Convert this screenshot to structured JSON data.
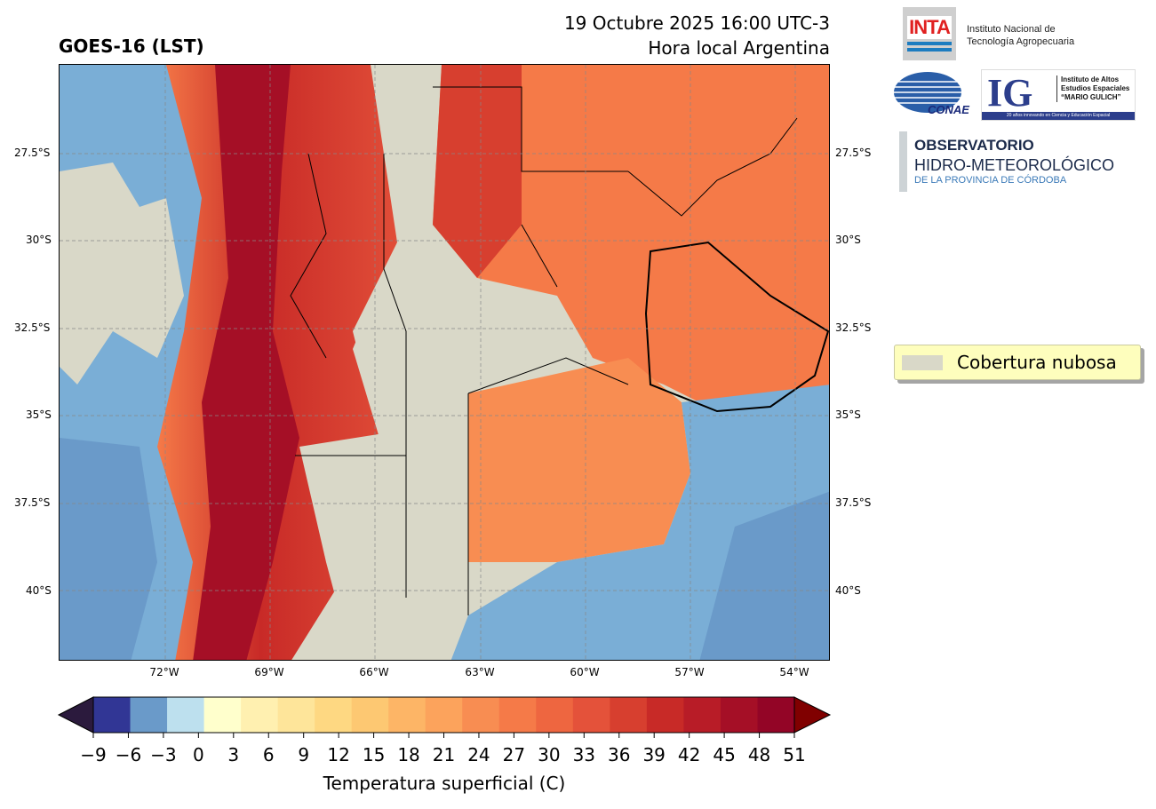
{
  "header": {
    "product_title": "GOES-16 (LST)",
    "datetime": "19 Octubre 2025 16:00 UTC-3",
    "timezone_note": "Hora local Argentina"
  },
  "map": {
    "lat_ticks": [
      "27.5°S",
      "30°S",
      "32.5°S",
      "35°S",
      "37.5°S",
      "40°S"
    ],
    "lon_ticks": [
      "72°W",
      "69°W",
      "66°W",
      "63°W",
      "60°W",
      "57°W",
      "54°W"
    ],
    "cloud_color": "#d9d8c8",
    "ocean_color": "#7aaed6"
  },
  "legend": {
    "cloud_label": "Cobertura nubosa"
  },
  "colorbar": {
    "label": "Temperatura superficial (C)",
    "ticks": [
      "−9",
      "−6",
      "−3",
      "0",
      "3",
      "6",
      "9",
      "12",
      "15",
      "18",
      "21",
      "24",
      "27",
      "30",
      "33",
      "36",
      "39",
      "42",
      "45",
      "48",
      "51"
    ],
    "colors": [
      "#313695",
      "#6a9ac9",
      "#bde0ee",
      "#ffffcc",
      "#fff0b0",
      "#fee59a",
      "#fed882",
      "#fdc872",
      "#fdb566",
      "#fca35c",
      "#f88d52",
      "#f57a48",
      "#ee6640",
      "#e4523a",
      "#d73f2f",
      "#c82a27",
      "#b81c27",
      "#a50f26",
      "#930526"
    ],
    "under_color": "#2b1a3d",
    "over_color": "#800000"
  },
  "logos": {
    "inta_mark": "INTA",
    "inta_name_line1": "Instituto Nacional de",
    "inta_name_line2": "Tecnología Agropecuaria",
    "conae_mark": "CONAE",
    "ig_mark": "IG",
    "ig_name_line1": "Instituto de Altos",
    "ig_name_line2": "Estudios Espaciales",
    "ig_name_line3": "“MARIO GULICH”",
    "ig_strip": "20 años innovando en Ciencia y Educación Espacial",
    "obs_line1": "OBSERVATORIO",
    "obs_line2": "HIDRO-METEOROLÓGICO",
    "obs_line3": "DE LA PROVINCIA DE CÓRDOBA"
  }
}
